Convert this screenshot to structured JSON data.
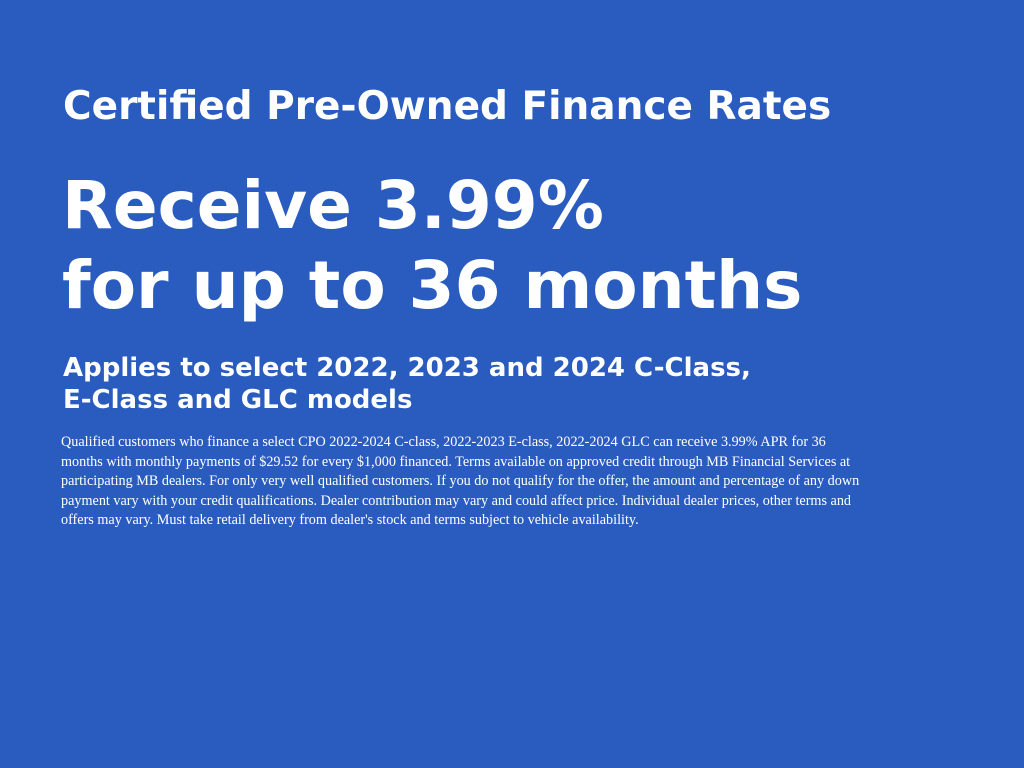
{
  "background_color": "#2a5cbf",
  "title": "Certified Pre-Owned Finance Rates",
  "headline": {
    "line1": "Receive 3.99%",
    "line2": "for up to 36 months"
  },
  "subheadline": {
    "line1": "Applies to select 2022, 2023 and 2024 C-Class,",
    "line2": "E-Class and GLC models"
  },
  "disclaimer": {
    "lines": [
      "Qualified customers who finance a select CPO 2022-2024 C-class, 2022-2023 E-class, 2022-2024 GLC can receive 3.99% APR for 36",
      "months with monthly payments of $29.52 for every $1,000 financed. Terms available on approved credit through MB Financial Services at",
      "participating MB dealers. For only very well qualified customers. If you do not qualify for the offer, the amount and percentage of any down",
      "payment vary with your credit qualifications. Dealer contribution may vary and could affect price. Individual dealer prices, other terms and",
      "offers may vary. Must take retail delivery from dealer's stock and terms subject to vehicle availability."
    ]
  }
}
